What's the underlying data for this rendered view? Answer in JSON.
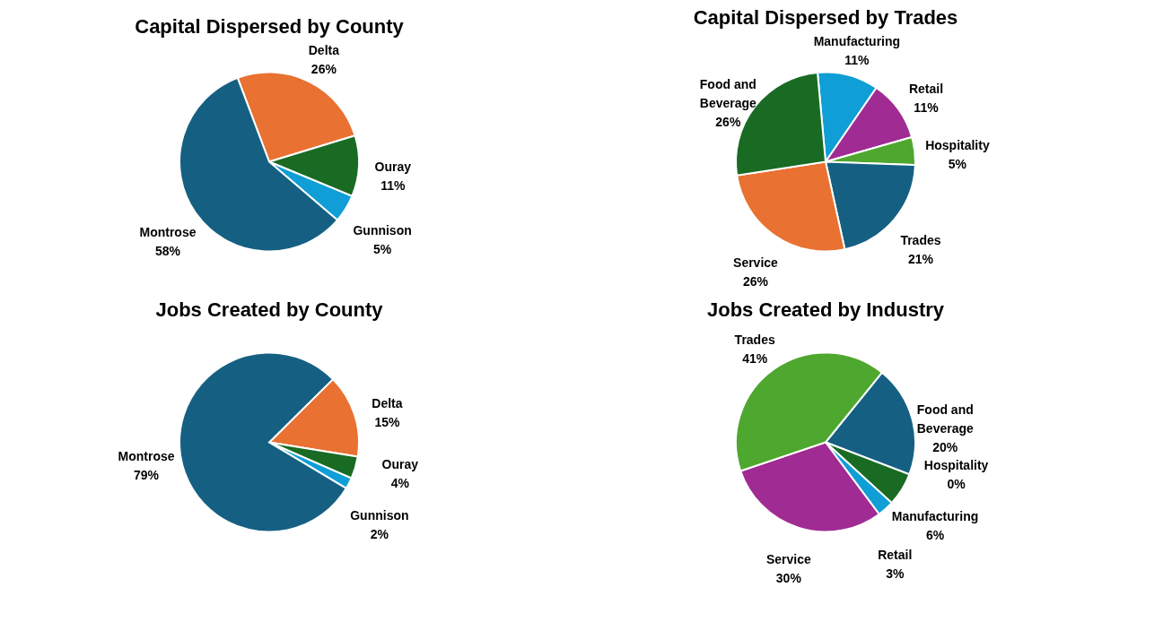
{
  "chart_data": [
    {
      "type": "pie",
      "title": "Capital Dispersed by County",
      "categories": [
        "Delta",
        "Ouray",
        "Gunnison",
        "Montrose"
      ],
      "values": [
        26,
        11,
        5,
        58
      ],
      "value_labels": [
        "26%",
        "11%",
        "5%",
        "58%"
      ],
      "colors": [
        "#e97132",
        "#196b24",
        "#0f9ed5",
        "#156082"
      ]
    },
    {
      "type": "pie",
      "title": "Capital Dispersed by Trades",
      "categories": [
        "Manufacturing",
        "Retail",
        "Hospitality",
        "Trades",
        "Service",
        "Food and Beverage"
      ],
      "values": [
        11,
        11,
        5,
        21,
        26,
        26
      ],
      "value_labels": [
        "11%",
        "11%",
        "5%",
        "21%",
        "26%",
        "26%"
      ],
      "colors": [
        "#0f9ed5",
        "#a02b93",
        "#4ea72e",
        "#156082",
        "#e97132",
        "#196b24"
      ]
    },
    {
      "type": "pie",
      "title": "Jobs Created by County",
      "categories": [
        "Delta",
        "Ouray",
        "Gunnison",
        "Montrose"
      ],
      "values": [
        15,
        4,
        2,
        79
      ],
      "value_labels": [
        "15%",
        "4%",
        "2%",
        "79%"
      ],
      "colors": [
        "#e97132",
        "#196b24",
        "#0f9ed5",
        "#156082"
      ]
    },
    {
      "type": "pie",
      "title": "Jobs Created by Industry",
      "categories": [
        "Food and Beverage",
        "Hospitality",
        "Manufacturing",
        "Retail",
        "Service",
        "Trades"
      ],
      "values": [
        20,
        0,
        6,
        3,
        30,
        41
      ],
      "value_labels": [
        "20%",
        "0%",
        "6%",
        "3%",
        "30%",
        "41%"
      ],
      "colors": [
        "#156082",
        "#e97132",
        "#196b24",
        "#0f9ed5",
        "#a02b93",
        "#4ea72e"
      ]
    }
  ]
}
